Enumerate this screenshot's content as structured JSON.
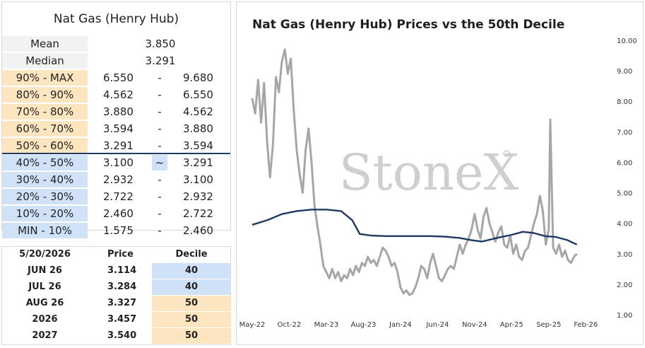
{
  "left_table": {
    "title": "Nat Gas (Henry Hub)",
    "mean_label": "Mean",
    "mean_value": "3.850",
    "median_label": "Median",
    "median_value": "3.291",
    "rows": [
      {
        "label": "90% - MAX",
        "lo": "6.550",
        "sep": "-",
        "hi": "9.680",
        "band": "upper"
      },
      {
        "label": "80% - 90%",
        "lo": "4.562",
        "sep": "-",
        "hi": "6.550",
        "band": "upper"
      },
      {
        "label": "70% - 80%",
        "lo": "3.880",
        "sep": "-",
        "hi": "4.562",
        "band": "upper"
      },
      {
        "label": "60% - 70%",
        "lo": "3.594",
        "sep": "-",
        "hi": "3.880",
        "band": "upper"
      },
      {
        "label": "50% - 60%",
        "lo": "3.291",
        "sep": "-",
        "hi": "3.594",
        "band": "upper"
      },
      {
        "label": "40% - 50%",
        "lo": "3.100",
        "sep": "~",
        "hi": "3.291",
        "band": "lower",
        "marker": true
      },
      {
        "label": "30% - 40%",
        "lo": "2.932",
        "sep": "-",
        "hi": "3.100",
        "band": "lower"
      },
      {
        "label": "20% - 30%",
        "lo": "2.722",
        "sep": "-",
        "hi": "2.932",
        "band": "lower"
      },
      {
        "label": "10% - 20%",
        "lo": "2.460",
        "sep": "-",
        "hi": "2.722",
        "band": "lower"
      },
      {
        "label": "MIN - 10%",
        "lo": "1.575",
        "sep": "-",
        "hi": "2.460",
        "band": "lower"
      }
    ]
  },
  "contract_table": {
    "header": {
      "date": "5/20/2026",
      "price": "Price",
      "decile": "Decile"
    },
    "rows": [
      {
        "contract": "JUN 26",
        "price": "3.114",
        "decile": "40",
        "band": "lower"
      },
      {
        "contract": "JUL 26",
        "price": "3.284",
        "decile": "40",
        "band": "lower"
      },
      {
        "contract": "AUG 26",
        "price": "3.327",
        "decile": "50",
        "band": "upper"
      },
      {
        "contract": "2026",
        "price": "3.457",
        "decile": "50",
        "band": "upper"
      },
      {
        "contract": "2027",
        "price": "3.540",
        "decile": "50",
        "band": "upper"
      }
    ]
  },
  "colors": {
    "upper_band": "#fde5bf",
    "lower_band": "#cfe2f8",
    "label_bg": "#f2f2f2",
    "price_line": "#a6a6a6",
    "decile_line": "#1f3864",
    "separator": "#1f3864"
  },
  "chart_data": {
    "type": "line",
    "title": "Nat Gas (Henry Hub) Prices vs the 50th Decile",
    "watermark": "StoneX",
    "x_ticks": [
      "May-22",
      "Oct-22",
      "Mar-23",
      "Aug-23",
      "Jan-24",
      "Jun-24",
      "Nov-24",
      "Apr-25",
      "Sep-25",
      "Feb-26"
    ],
    "y_ticks": [
      "1.00",
      "2.00",
      "3.00",
      "4.00",
      "5.00",
      "6.00",
      "7.00",
      "8.00",
      "9.00",
      "10.00"
    ],
    "ylim": [
      1,
      10
    ],
    "x_range": [
      0,
      48.6
    ],
    "series": [
      {
        "name": "Price",
        "points": [
          [
            0,
            8.1
          ],
          [
            0.4,
            7.6
          ],
          [
            0.8,
            8.7
          ],
          [
            1.2,
            7.3
          ],
          [
            1.6,
            8.6
          ],
          [
            2,
            6.7
          ],
          [
            2.4,
            5.5
          ],
          [
            2.8,
            6.6
          ],
          [
            3.2,
            8.8
          ],
          [
            3.6,
            8.3
          ],
          [
            4,
            9.3
          ],
          [
            4.4,
            9.7
          ],
          [
            4.8,
            8.9
          ],
          [
            5.2,
            9.4
          ],
          [
            5.6,
            7.7
          ],
          [
            6,
            6.4
          ],
          [
            6.4,
            5.6
          ],
          [
            6.8,
            5.0
          ],
          [
            7.2,
            6.4
          ],
          [
            7.6,
            7.1
          ],
          [
            8,
            6.0
          ],
          [
            8.4,
            4.6
          ],
          [
            8.8,
            3.9
          ],
          [
            9.2,
            3.3
          ],
          [
            9.6,
            2.6
          ],
          [
            10,
            2.4
          ],
          [
            10.4,
            2.2
          ],
          [
            10.8,
            2.5
          ],
          [
            11.2,
            2.2
          ],
          [
            11.6,
            2.4
          ],
          [
            12,
            2.1
          ],
          [
            12.4,
            2.3
          ],
          [
            12.8,
            2.2
          ],
          [
            13.2,
            2.5
          ],
          [
            13.6,
            2.3
          ],
          [
            14,
            2.6
          ],
          [
            14.4,
            2.4
          ],
          [
            14.8,
            2.7
          ],
          [
            15.2,
            2.6
          ],
          [
            15.6,
            2.9
          ],
          [
            16,
            2.7
          ],
          [
            16.4,
            2.8
          ],
          [
            16.8,
            2.6
          ],
          [
            17.2,
            2.9
          ],
          [
            17.6,
            3.2
          ],
          [
            18,
            3.1
          ],
          [
            18.4,
            2.9
          ],
          [
            18.8,
            2.6
          ],
          [
            19.2,
            2.7
          ],
          [
            19.6,
            2.4
          ],
          [
            20,
            1.9
          ],
          [
            20.4,
            1.7
          ],
          [
            20.8,
            1.8
          ],
          [
            21.2,
            1.65
          ],
          [
            21.6,
            1.7
          ],
          [
            22,
            1.9
          ],
          [
            22.4,
            2.2
          ],
          [
            22.8,
            2.6
          ],
          [
            23.2,
            2.5
          ],
          [
            23.6,
            2.2
          ],
          [
            24,
            2.7
          ],
          [
            24.4,
            3.0
          ],
          [
            24.8,
            2.6
          ],
          [
            25.2,
            2.2
          ],
          [
            25.6,
            2.1
          ],
          [
            26,
            2.3
          ],
          [
            26.4,
            2.5
          ],
          [
            26.8,
            2.6
          ],
          [
            27.2,
            2.5
          ],
          [
            27.6,
            2.9
          ],
          [
            28,
            3.3
          ],
          [
            28.4,
            3.0
          ],
          [
            28.8,
            3.3
          ],
          [
            29.2,
            3.5
          ],
          [
            29.6,
            3.8
          ],
          [
            30,
            4.3
          ],
          [
            30.4,
            3.8
          ],
          [
            30.8,
            3.5
          ],
          [
            31.2,
            4.2
          ],
          [
            31.6,
            4.5
          ],
          [
            32,
            4.0
          ],
          [
            32.4,
            3.7
          ],
          [
            32.8,
            3.4
          ],
          [
            33.2,
            3.7
          ],
          [
            33.6,
            3.9
          ],
          [
            34,
            3.3
          ],
          [
            34.4,
            3.2
          ],
          [
            34.8,
            3.6
          ],
          [
            35.2,
            3.0
          ],
          [
            35.6,
            3.3
          ],
          [
            36,
            2.9
          ],
          [
            36.4,
            2.8
          ],
          [
            36.8,
            3.1
          ],
          [
            37.2,
            3.2
          ],
          [
            37.6,
            3.6
          ],
          [
            38,
            4.0
          ],
          [
            38.4,
            4.3
          ],
          [
            38.8,
            4.9
          ],
          [
            39.2,
            4.4
          ],
          [
            39.6,
            3.3
          ],
          [
            40,
            3.8
          ],
          [
            40.2,
            7.4
          ],
          [
            40.6,
            3.2
          ],
          [
            41,
            3.0
          ],
          [
            41.4,
            3.3
          ],
          [
            41.8,
            2.9
          ],
          [
            42.2,
            3.1
          ],
          [
            42.6,
            2.8
          ],
          [
            43,
            2.7
          ],
          [
            43.4,
            2.9
          ],
          [
            43.8,
            3.0
          ]
        ]
      },
      {
        "name": "50th Decile",
        "points": [
          [
            0,
            3.95
          ],
          [
            2,
            4.1
          ],
          [
            4,
            4.3
          ],
          [
            6,
            4.4
          ],
          [
            8,
            4.45
          ],
          [
            10,
            4.45
          ],
          [
            12,
            4.4
          ],
          [
            13.5,
            4.1
          ],
          [
            14.5,
            3.65
          ],
          [
            16,
            3.6
          ],
          [
            18,
            3.58
          ],
          [
            20,
            3.58
          ],
          [
            22,
            3.58
          ],
          [
            24,
            3.58
          ],
          [
            26,
            3.56
          ],
          [
            28,
            3.52
          ],
          [
            29.5,
            3.45
          ],
          [
            31,
            3.4
          ],
          [
            33,
            3.52
          ],
          [
            35,
            3.62
          ],
          [
            36.5,
            3.72
          ],
          [
            38,
            3.68
          ],
          [
            39.5,
            3.58
          ],
          [
            41,
            3.55
          ],
          [
            42.5,
            3.45
          ],
          [
            43.8,
            3.3
          ]
        ]
      }
    ]
  }
}
